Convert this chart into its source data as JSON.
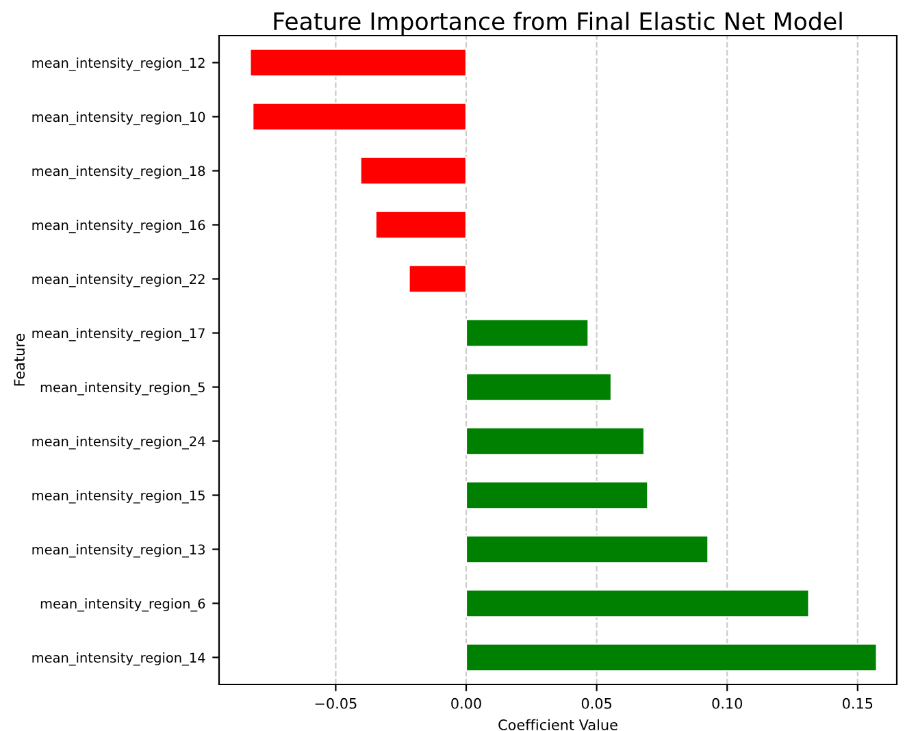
{
  "chart_data": {
    "type": "bar",
    "orientation": "horizontal",
    "title": "Feature Importance from Final Elastic Net Model",
    "xlabel": "Coefficient Value",
    "ylabel": "Feature",
    "categories": [
      "mean_intensity_region_12",
      "mean_intensity_region_10",
      "mean_intensity_region_18",
      "mean_intensity_region_16",
      "mean_intensity_region_22",
      "mean_intensity_region_17",
      "mean_intensity_region_5",
      "mean_intensity_region_24",
      "mean_intensity_region_15",
      "mean_intensity_region_13",
      "mean_intensity_region_6",
      "mean_intensity_region_14"
    ],
    "values": [
      -0.0828,
      -0.0818,
      -0.0405,
      -0.0347,
      -0.0219,
      0.0468,
      0.0556,
      0.0682,
      0.0696,
      0.0927,
      0.1313,
      0.1573
    ],
    "colors": [
      "#ff0000",
      "#ff0000",
      "#ff0000",
      "#ff0000",
      "#ff0000",
      "#008000",
      "#008000",
      "#008000",
      "#008000",
      "#008000",
      "#008000",
      "#008000"
    ],
    "xlim": [
      -0.0947,
      0.165
    ],
    "xticks": [
      {
        "value": -0.05,
        "label": "−0.05"
      },
      {
        "value": 0.0,
        "label": "0.00"
      },
      {
        "value": 0.05,
        "label": "0.05"
      },
      {
        "value": 0.1,
        "label": "0.10"
      },
      {
        "value": 0.15,
        "label": "0.15"
      }
    ],
    "grid": "x",
    "legend": false
  }
}
